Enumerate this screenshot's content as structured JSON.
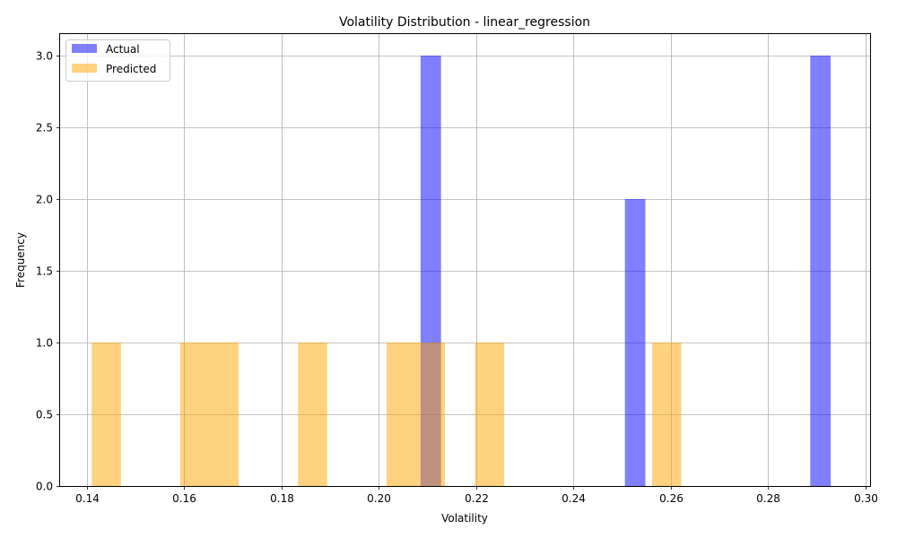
{
  "chart_data": {
    "type": "bar",
    "subtype": "histogram-overlay",
    "title": "Volatility Distribution - linear_regression",
    "xlabel": "Volatility",
    "ylabel": "Frequency",
    "xlim": [
      0.1345,
      0.301
    ],
    "ylim": [
      0,
      3.15
    ],
    "x_ticks": [
      0.14,
      0.16,
      0.18,
      0.2,
      0.22,
      0.24,
      0.26,
      0.28,
      0.3
    ],
    "x_tick_labels": [
      "0.14",
      "0.16",
      "0.18",
      "0.20",
      "0.22",
      "0.24",
      "0.26",
      "0.28",
      "0.30"
    ],
    "y_ticks": [
      0,
      0.5,
      1,
      1.5,
      2,
      2.5,
      3
    ],
    "y_tick_labels": [
      "0.0",
      "0.5",
      "1.0",
      "1.5",
      "2.0",
      "2.5",
      "3.0"
    ],
    "grid": true,
    "legend_position": "top-left",
    "series": [
      {
        "name": "Actual",
        "color": "#8080ff",
        "opacity": 0.5,
        "base_color": "#0000ff",
        "bins": [
          {
            "x0": 0.2086,
            "x1": 0.2128,
            "count": 3
          },
          {
            "x0": 0.2506,
            "x1": 0.2548,
            "count": 2
          },
          {
            "x0": 0.2887,
            "x1": 0.2929,
            "count": 3
          }
        ]
      },
      {
        "name": "Predicted",
        "color": "#ffd27f",
        "opacity": 0.5,
        "base_color": "#ffa500",
        "bins": [
          {
            "x0": 0.141,
            "x1": 0.147,
            "count": 1
          },
          {
            "x0": 0.1592,
            "x1": 0.1652,
            "count": 1
          },
          {
            "x0": 0.1652,
            "x1": 0.1712,
            "count": 1
          },
          {
            "x0": 0.1834,
            "x1": 0.1894,
            "count": 1
          },
          {
            "x0": 0.2016,
            "x1": 0.2076,
            "count": 1
          },
          {
            "x0": 0.2076,
            "x1": 0.2136,
            "count": 1
          },
          {
            "x0": 0.2198,
            "x1": 0.2258,
            "count": 1
          },
          {
            "x0": 0.2562,
            "x1": 0.2622,
            "count": 1
          }
        ]
      }
    ]
  }
}
